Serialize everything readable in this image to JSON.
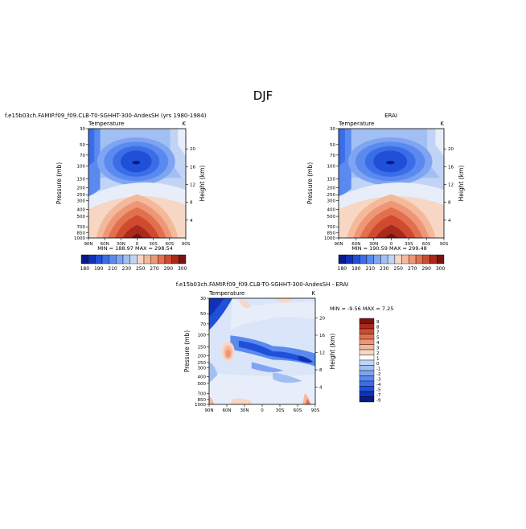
{
  "page": {
    "title": "DJF"
  },
  "colorbar_fills": {
    "temperature": [
      "#0a1a8a",
      "#1030b8",
      "#2050d8",
      "#3a6ee8",
      "#5a8aef",
      "#7ea4f2",
      "#a2bff4",
      "#c2d4f5",
      "#f7d6c3",
      "#f4b89b",
      "#ee9676",
      "#e2704f",
      "#cf4a2e",
      "#a92a1c",
      "#7a1310"
    ],
    "difference": [
      "#0a1a8a",
      "#1030b8",
      "#2050d8",
      "#3a6ee8",
      "#5a8aef",
      "#7ea4f2",
      "#a2bff4",
      "#c2d4f5",
      "#ffffff",
      "#f7d6c3",
      "#f4b89b",
      "#ee9676",
      "#e2704f",
      "#cf4a2e",
      "#a92a1c",
      "#7a1310"
    ]
  },
  "chart_data": [
    {
      "type": "heatmap",
      "title": "f.e15b03ch.FAMIP.f09_f09.CLB-T0-SGHHT-300-AndesSH (yrs 1980-1984)",
      "left_label": "Temperature",
      "right_label": "K",
      "ylabel": "Pressure (mb)",
      "y2label": "Height (km)",
      "xticks": [
        "90N",
        "60N",
        "30N",
        "0",
        "30S",
        "60S",
        "90S"
      ],
      "yticks": [
        "30",
        "50",
        "70",
        "100",
        "150",
        "200",
        "250",
        "300",
        "400",
        "500",
        "700",
        "850",
        "1000"
      ],
      "y2ticks": [
        "20",
        "16",
        "12",
        "8",
        "4"
      ],
      "stats": "MIN =   188.97   MAX =   298.54",
      "colorbar_labels": [
        "180",
        "190",
        "210",
        "230",
        "250",
        "270",
        "290",
        "300"
      ]
    },
    {
      "type": "heatmap",
      "title": "ERAI",
      "left_label": "Temperature",
      "right_label": "K",
      "ylabel": "Pressure (mb)",
      "y2label": "Height (km)",
      "xticks": [
        "90N",
        "60N",
        "30N",
        "0",
        "30S",
        "60S",
        "90S"
      ],
      "yticks": [
        "30",
        "50",
        "70",
        "100",
        "150",
        "200",
        "250",
        "300",
        "400",
        "500",
        "700",
        "850",
        "1000"
      ],
      "y2ticks": [
        "20",
        "16",
        "12",
        "8",
        "4"
      ],
      "stats": "MIN =   190.59   MAX =   299.48",
      "colorbar_labels": [
        "180",
        "190",
        "210",
        "230",
        "250",
        "270",
        "290",
        "300"
      ]
    },
    {
      "type": "heatmap",
      "title": "f.e15b03ch.FAMIP.f09_f09.CLB-T0-SGHHT-300-AndesSH  -  ERAI",
      "left_label": "Temperature",
      "right_label": "K",
      "ylabel": "Pressure (mb)",
      "y2label": "Height (km)",
      "xticks": [
        "90N",
        "60N",
        "30N",
        "0",
        "30S",
        "60S",
        "90S"
      ],
      "yticks": [
        "30",
        "50",
        "70",
        "100",
        "150",
        "200",
        "250",
        "300",
        "400",
        "500",
        "700",
        "850",
        "1000"
      ],
      "y2ticks": [
        "20",
        "16",
        "12",
        "8",
        "4"
      ],
      "stats": "MIN =   -9.56   MAX =    7.25",
      "colorbar_labels": [
        "9",
        "8",
        "7",
        "5",
        "4",
        "3",
        "2",
        "1",
        "0",
        "-1",
        "-2",
        "-3",
        "-4",
        "-5",
        "-7",
        "-9"
      ]
    }
  ]
}
